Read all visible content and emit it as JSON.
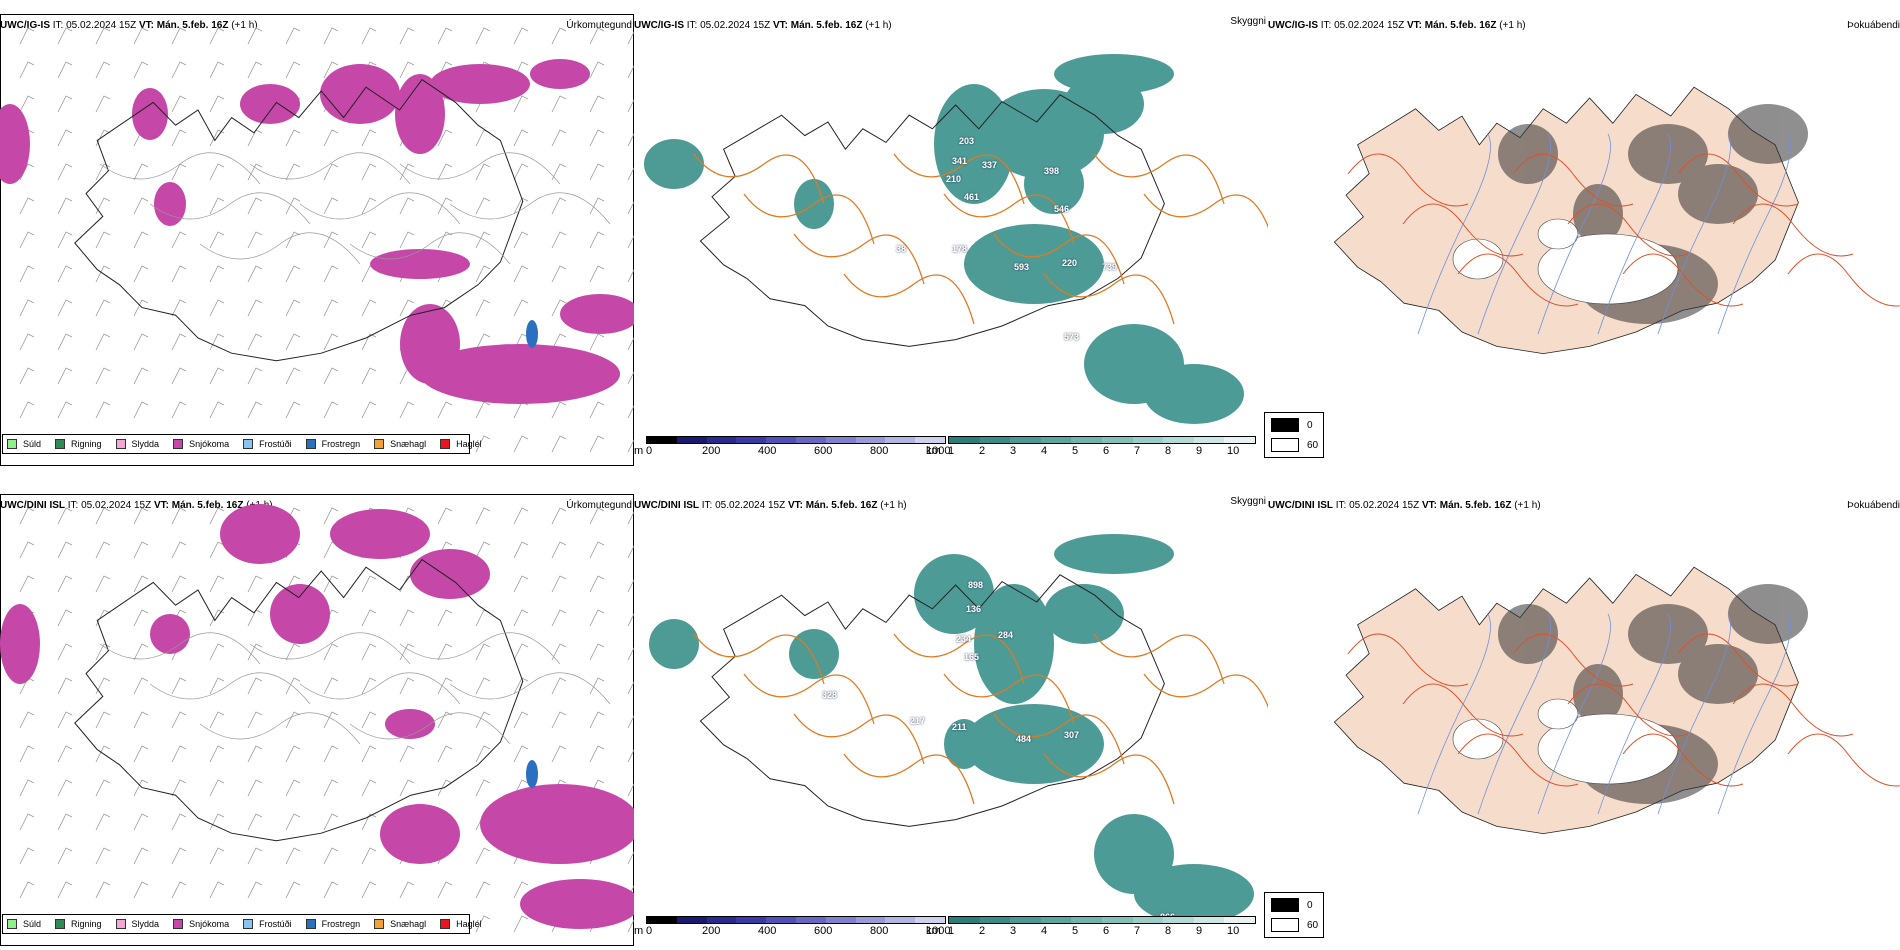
{
  "rows": [
    {
      "model": "UWC/IG-IS",
      "it_label": "IT:",
      "it_value": "05.02.2024 15Z",
      "vt_label": "VT:",
      "vt_value": "Mán. 5.feb. 16Z",
      "lead": "(+1 h)",
      "vis_labels": [
        "203",
        "341",
        "337",
        "210",
        "461",
        "398",
        "546",
        "178",
        "593",
        "220",
        "739",
        "573",
        "38"
      ]
    },
    {
      "model": "UWC/DINI ISL",
      "it_label": "IT:",
      "it_value": "05.02.2024 15Z",
      "vt_label": "VT:",
      "vt_value": "Mán. 5.feb. 16Z",
      "lead": "(+1 h)",
      "vis_labels": [
        "898",
        "136",
        "234",
        "284",
        "165",
        "328",
        "217",
        "211",
        "484",
        "307",
        "866"
      ]
    }
  ],
  "panel_titles": {
    "precip": "Úrkomutegund",
    "visibility": "Skyggni",
    "fog": "Þokuábendi"
  },
  "precip_legend": [
    {
      "label": "Súld",
      "color": "#90ee90"
    },
    {
      "label": "Rigning",
      "color": "#2e8b57"
    },
    {
      "label": "Slydda",
      "color": "#f4a6d7"
    },
    {
      "label": "Snjókoma",
      "color": "#c548a8"
    },
    {
      "label": "Frostúði",
      "color": "#87c4f0"
    },
    {
      "label": "Frostregn",
      "color": "#2a6fc0"
    },
    {
      "label": "Snæhagl",
      "color": "#f5a030"
    },
    {
      "label": "Haglél",
      "color": "#e8141e"
    }
  ],
  "height_bar": {
    "unit": "m",
    "ticks": [
      "0",
      "200",
      "400",
      "600",
      "800",
      "1000"
    ],
    "colors": [
      "#000000",
      "#1a1a6e",
      "#2a2a8e",
      "#3a3aa6",
      "#5050b8",
      "#6868c4",
      "#8080cc",
      "#9a9ad6",
      "#b4b4e0",
      "#d0d0ee"
    ]
  },
  "km_bar": {
    "unit": "km",
    "ticks": [
      "1",
      "2",
      "3",
      "4",
      "5",
      "6",
      "7",
      "8",
      "9",
      "10"
    ],
    "colors": [
      "#2a7f7a",
      "#3a8c86",
      "#4a9992",
      "#5ca69f",
      "#6fb3ac",
      "#84c0ba",
      "#9acdc8",
      "#b2dad6",
      "#cce7e4",
      "#e6f3f2"
    ]
  },
  "fog_legend": [
    {
      "label": "0",
      "color": "#000000"
    },
    {
      "label": "60",
      "color": "#ffffff"
    }
  ],
  "colors": {
    "snow": "#c548a8",
    "freezing_rain": "#2a6fc0",
    "visibility": "#2f8a84",
    "roads": "#e07a20",
    "fog_land": "#f5dccb",
    "fog_roads": "#e0502a",
    "fog_rivers": "#6f8fe0"
  }
}
